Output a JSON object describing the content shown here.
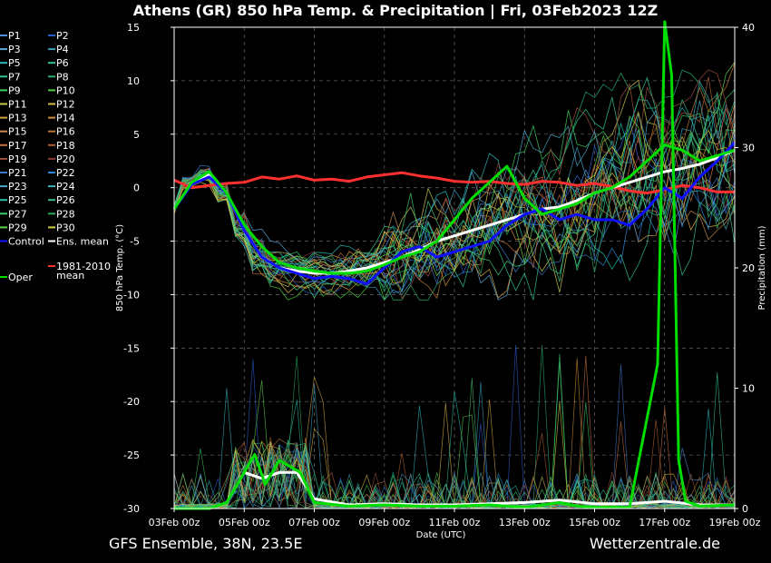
{
  "chart_data": {
    "type": "line",
    "title": "Athens  (GR)  850 hPa Temp. & Precipitation | Fri, 03Feb2023 12Z",
    "xlabel": "Date (UTC)",
    "ylabel": "850 hPa Temp. (°C)",
    "ylabel_right": "Precipitation (mm)",
    "footer_left": "GFS Ensemble, 38N, 23.5E",
    "footer_right": "Wetterzentrale.de",
    "x_tick_labels": [
      "03Feb 00z",
      "05Feb 00z",
      "07Feb 00z",
      "09Feb 00z",
      "11Feb 00z",
      "13Feb 00z",
      "15Feb 00z",
      "17Feb 00z",
      "19Feb 00z"
    ],
    "x_range_days": [
      0,
      16
    ],
    "ylim": [
      -30,
      15
    ],
    "y_ticks": [
      15,
      10,
      5,
      0,
      -5,
      -10,
      -15,
      -20,
      -25,
      -30
    ],
    "ylim_right": [
      0,
      40
    ],
    "y_ticks_right": [
      40,
      30,
      20,
      10,
      0
    ],
    "grid": true,
    "legend_position": "left-outside",
    "legend": [
      {
        "label": "P1",
        "color": "#4f8fe0"
      },
      {
        "label": "P2",
        "color": "#2a5ed0"
      },
      {
        "label": "P3",
        "color": "#5aa8d8"
      },
      {
        "label": "P4",
        "color": "#3aa0c0"
      },
      {
        "label": "P5",
        "color": "#2cb8b8"
      },
      {
        "label": "P6",
        "color": "#2ac0a0"
      },
      {
        "label": "P7",
        "color": "#30c890"
      },
      {
        "label": "P8",
        "color": "#28b070"
      },
      {
        "label": "P9",
        "color": "#3ccc60"
      },
      {
        "label": "P10",
        "color": "#50d040"
      },
      {
        "label": "P11",
        "color": "#c8c850"
      },
      {
        "label": "P12",
        "color": "#d8b848"
      },
      {
        "label": "P13",
        "color": "#d0a040"
      },
      {
        "label": "P14",
        "color": "#d09038"
      },
      {
        "label": "P15",
        "color": "#c88850"
      },
      {
        "label": "P16",
        "color": "#b87830"
      },
      {
        "label": "P17",
        "color": "#c87040"
      },
      {
        "label": "P18",
        "color": "#b06030"
      },
      {
        "label": "P19",
        "color": "#a05040"
      },
      {
        "label": "P20",
        "color": "#903838"
      },
      {
        "label": "P21",
        "color": "#3a78c8"
      },
      {
        "label": "P22",
        "color": "#2a88d8"
      },
      {
        "label": "P23",
        "color": "#48a8c8"
      },
      {
        "label": "P24",
        "color": "#38b0b8"
      },
      {
        "label": "P25",
        "color": "#28c0a8"
      },
      {
        "label": "P26",
        "color": "#30c088"
      },
      {
        "label": "P27",
        "color": "#40c870"
      },
      {
        "label": "P28",
        "color": "#30a860"
      },
      {
        "label": "P29",
        "color": "#60d050"
      },
      {
        "label": "P30",
        "color": "#d0d040"
      },
      {
        "label": "Control",
        "color": "#1010ff"
      },
      {
        "label": "Ens. mean",
        "color": "#ffffff"
      },
      {
        "label": "Oper",
        "color": "#00dd00"
      },
      {
        "label": "1981-2010\nmean",
        "color": "#ff3030"
      }
    ],
    "series": [
      {
        "name": "Oper",
        "axis": "temp",
        "color": "#00dd00",
        "x": [
          0,
          0.5,
          1,
          1.5,
          2,
          2.5,
          3,
          3.5,
          4,
          4.5,
          5,
          5.5,
          6,
          6.5,
          7,
          7.5,
          8,
          8.5,
          9,
          9.5,
          10,
          10.5,
          11,
          11.5,
          12,
          12.5,
          13,
          13.5,
          14,
          14.5,
          15,
          15.5,
          16
        ],
        "values": [
          -2,
          0.5,
          1.5,
          -0.5,
          -3.5,
          -5.5,
          -7,
          -7.5,
          -7.8,
          -8,
          -8,
          -7.8,
          -7.2,
          -6.5,
          -6,
          -5,
          -3,
          -1,
          0.5,
          2,
          -1,
          -2.5,
          -2,
          -1.5,
          -0.5,
          0,
          1,
          2.5,
          4,
          3.5,
          2.5,
          3,
          3.5
        ]
      },
      {
        "name": "Control",
        "axis": "temp",
        "color": "#1010ff",
        "x": [
          0,
          0.5,
          1,
          1.5,
          2,
          2.5,
          3,
          3.5,
          4,
          4.5,
          5,
          5.5,
          6,
          6.5,
          7,
          7.5,
          8,
          8.5,
          9,
          9.5,
          10,
          10.5,
          11,
          11.5,
          12,
          12.5,
          13,
          13.5,
          14,
          14.5,
          15,
          15.5,
          16
        ],
        "values": [
          -2,
          0.3,
          1,
          -0.5,
          -4,
          -6.5,
          -7.5,
          -8,
          -8.5,
          -8.3,
          -8.5,
          -9,
          -7.5,
          -6,
          -5.5,
          -6.5,
          -6,
          -5.5,
          -5,
          -3.5,
          -2.5,
          -2,
          -3,
          -2.5,
          -3,
          -3,
          -3.5,
          -2,
          0,
          -1,
          1,
          2.5,
          4.2
        ]
      },
      {
        "name": "Ens. mean",
        "axis": "temp",
        "color": "#ffffff",
        "x": [
          0,
          0.5,
          1,
          1.5,
          2,
          2.5,
          3,
          3.5,
          4,
          4.5,
          5,
          5.5,
          6,
          6.5,
          7,
          7.5,
          8,
          8.5,
          9,
          9.5,
          10,
          10.5,
          11,
          11.5,
          12,
          12.5,
          13,
          13.5,
          14,
          14.5,
          15,
          15.5,
          16
        ],
        "values": [
          -2,
          0.5,
          1.2,
          -0.5,
          -4,
          -6.5,
          -7.5,
          -7.8,
          -8,
          -8,
          -7.8,
          -7.5,
          -7,
          -6.5,
          -5.8,
          -5,
          -4.5,
          -4,
          -3.5,
          -3,
          -2.5,
          -2,
          -1.8,
          -1.2,
          -0.5,
          0,
          0.5,
          1,
          1.5,
          1.8,
          2.2,
          2.8,
          3.5
        ]
      },
      {
        "name": "1981-2010 mean",
        "axis": "temp",
        "color": "#ff3030",
        "x": [
          0,
          0.5,
          1,
          1.5,
          2,
          2.5,
          3,
          3.5,
          4,
          4.5,
          5,
          5.5,
          6,
          6.5,
          7,
          7.5,
          8,
          8.5,
          9,
          9.5,
          10,
          10.5,
          11,
          11.5,
          12,
          12.5,
          13,
          13.5,
          14,
          14.5,
          15,
          15.5,
          16
        ],
        "values": [
          0.7,
          0,
          0.2,
          0.4,
          0.5,
          1,
          0.8,
          1.1,
          0.7,
          0.8,
          0.6,
          1,
          1.2,
          1.4,
          1.1,
          0.9,
          0.6,
          0.5,
          0.6,
          0.4,
          0.3,
          0.6,
          0.5,
          0.2,
          0.4,
          0.1,
          -0.3,
          -0.5,
          -0.2,
          0.2,
          0,
          -0.4,
          -0.4
        ]
      },
      {
        "name": "Oper",
        "axis": "precip",
        "color": "#00dd00",
        "x": [
          0,
          1,
          1.5,
          2,
          2.3,
          2.6,
          3,
          3.3,
          3.6,
          4,
          5,
          6,
          7,
          8,
          9,
          10,
          11,
          11.5,
          12,
          13,
          13.8,
          14,
          14.2,
          14.4,
          14.6,
          15,
          16
        ],
        "values": [
          0,
          0,
          0.5,
          3,
          4.5,
          2,
          4,
          3.5,
          3,
          0.5,
          0.2,
          0.3,
          0.2,
          0.2,
          0.3,
          0.1,
          0.5,
          0.2,
          0.1,
          0.1,
          12,
          48,
          36,
          4,
          0.6,
          0.2,
          0.3
        ]
      },
      {
        "name": "Ens. mean",
        "axis": "precip",
        "color": "#ffffff",
        "x": [
          0,
          1,
          1.5,
          2,
          2.5,
          3,
          3.5,
          4,
          5,
          6,
          7,
          8,
          9,
          10,
          11,
          12,
          13,
          14,
          15,
          16
        ],
        "values": [
          0,
          0,
          0.5,
          3,
          2.5,
          3,
          3,
          0.8,
          0.3,
          0.4,
          0.3,
          0.3,
          0.4,
          0.5,
          0.7,
          0.4,
          0.4,
          0.6,
          0.3,
          0.3
        ]
      }
    ]
  }
}
